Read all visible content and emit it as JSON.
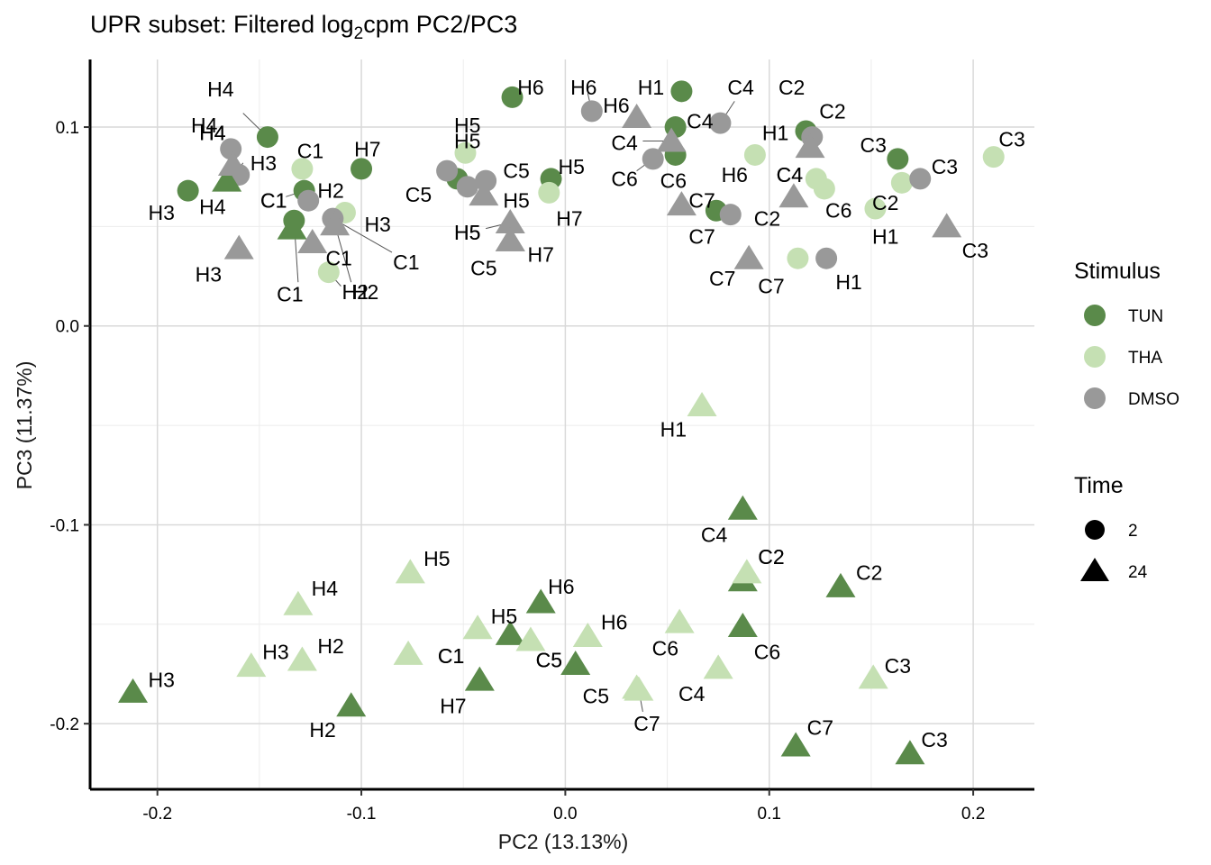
{
  "chart_data": {
    "type": "scatter",
    "title_main": "UPR subset: Filtered log",
    "title_sub": "2",
    "title_rest": "cpm PC2/PC3",
    "xlabel": "PC2 (13.13%)",
    "ylabel": "PC3 (11.37%)",
    "xlim": [
      -0.233,
      0.23
    ],
    "ylim": [
      -0.233,
      0.134
    ],
    "xticks": [
      -0.2,
      -0.1,
      0.0,
      0.1,
      0.2
    ],
    "xtick_labels": [
      "-0.2",
      "-0.1",
      "0.0",
      "0.1",
      "0.2"
    ],
    "yticks": [
      -0.2,
      -0.1,
      0.0,
      0.1
    ],
    "ytick_labels": [
      "-0.2",
      "-0.1",
      "0.0",
      "0.1"
    ],
    "grid": true,
    "colors": {
      "TUN": "#5A8A4A",
      "THA": "#C5E0B3",
      "DMSO": "#999999"
    },
    "legend": {
      "stimulus_title": "Stimulus",
      "stimulus": [
        "TUN",
        "THA",
        "DMSO"
      ],
      "time_title": "Time",
      "time": [
        "2",
        "24"
      ],
      "position": "right"
    },
    "points": [
      {
        "label": "H4",
        "stim": "TUN",
        "time": "2",
        "x": -0.146,
        "y": 0.095,
        "lx": -0.169,
        "ly": 0.119
      },
      {
        "label": "H3",
        "stim": "TUN",
        "time": "2",
        "x": -0.185,
        "y": 0.068,
        "lx": -0.198,
        "ly": 0.057
      },
      {
        "label": "C1",
        "stim": "TUN",
        "time": "2",
        "x": -0.128,
        "y": 0.068,
        "lx": -0.143,
        "ly": 0.063
      },
      {
        "label": "C1",
        "stim": "TUN",
        "time": "2",
        "x": -0.133,
        "y": 0.053,
        "lx": -0.135,
        "ly": 0.016
      },
      {
        "label": "H7",
        "stim": "TUN",
        "time": "2",
        "x": -0.1,
        "y": 0.079,
        "lx": -0.097,
        "ly": 0.089
      },
      {
        "label": "H6",
        "stim": "TUN",
        "time": "2",
        "x": -0.026,
        "y": 0.115,
        "lx": -0.017,
        "ly": 0.12
      },
      {
        "label": "H5",
        "stim": "TUN",
        "time": "2",
        "x": -0.007,
        "y": 0.074,
        "lx": 0.003,
        "ly": 0.08
      },
      {
        "label": "H5",
        "stim": "TUN",
        "time": "2",
        "x": -0.053,
        "y": 0.074,
        "lx": -0.048,
        "ly": 0.093
      },
      {
        "label": "H1",
        "stim": "TUN",
        "time": "2",
        "x": 0.057,
        "y": 0.118,
        "lx": 0.042,
        "ly": 0.12
      },
      {
        "label": "C4",
        "stim": "TUN",
        "time": "2",
        "x": 0.054,
        "y": 0.1,
        "lx": 0.066,
        "ly": 0.103
      },
      {
        "label": "C6",
        "stim": "TUN",
        "time": "2",
        "x": 0.054,
        "y": 0.086,
        "lx": 0.053,
        "ly": 0.073
      },
      {
        "label": "C7",
        "stim": "TUN",
        "time": "2",
        "x": 0.074,
        "y": 0.058,
        "lx": 0.067,
        "ly": 0.045
      },
      {
        "label": "C2",
        "stim": "TUN",
        "time": "2",
        "x": 0.118,
        "y": 0.098,
        "lx": 0.111,
        "ly": 0.12
      },
      {
        "label": "C3",
        "stim": "TUN",
        "time": "2",
        "x": 0.163,
        "y": 0.084,
        "lx": 0.151,
        "ly": 0.091
      },
      {
        "label": "H4",
        "stim": "THA",
        "time": "2",
        "x": -0.163,
        "y": 0.075,
        "lx": -0.177,
        "ly": 0.101
      },
      {
        "label": "C1",
        "stim": "THA",
        "time": "2",
        "x": -0.129,
        "y": 0.079,
        "lx": -0.125,
        "ly": 0.088
      },
      {
        "label": "H3",
        "stim": "THA",
        "time": "2",
        "x": -0.108,
        "y": 0.057,
        "lx": -0.092,
        "ly": 0.051
      },
      {
        "label": "H2",
        "stim": "THA",
        "time": "2",
        "x": -0.116,
        "y": 0.027,
        "lx": -0.103,
        "ly": 0.017
      },
      {
        "label": "H5",
        "stim": "THA",
        "time": "2",
        "x": -0.049,
        "y": 0.087,
        "lx": -0.048,
        "ly": 0.101
      },
      {
        "label": "H7",
        "stim": "THA",
        "time": "2",
        "x": -0.008,
        "y": 0.067,
        "lx": 0.002,
        "ly": 0.054
      },
      {
        "label": "H6",
        "stim": "THA",
        "time": "2",
        "x": 0.093,
        "y": 0.086,
        "lx": 0.083,
        "ly": 0.076
      },
      {
        "label": "C4",
        "stim": "THA",
        "time": "2",
        "x": 0.123,
        "y": 0.074,
        "lx": 0.11,
        "ly": 0.076
      },
      {
        "label": "C6",
        "stim": "THA",
        "time": "2",
        "x": 0.127,
        "y": 0.069,
        "lx": 0.134,
        "ly": 0.058
      },
      {
        "label": "C2",
        "stim": "THA",
        "time": "2",
        "x": 0.165,
        "y": 0.072,
        "lx": 0.157,
        "ly": 0.062
      },
      {
        "label": "H1",
        "stim": "THA",
        "time": "2",
        "x": 0.152,
        "y": 0.059,
        "lx": 0.157,
        "ly": 0.045
      },
      {
        "label": "C7",
        "stim": "THA",
        "time": "2",
        "x": 0.114,
        "y": 0.034,
        "lx": 0.101,
        "ly": 0.02
      },
      {
        "label": "C3",
        "stim": "THA",
        "time": "2",
        "x": 0.21,
        "y": 0.085,
        "lx": 0.219,
        "ly": 0.094
      },
      {
        "label": "H4",
        "stim": "DMSO",
        "time": "2",
        "x": -0.164,
        "y": 0.089,
        "lx": -0.173,
        "ly": 0.097
      },
      {
        "label": "H3",
        "stim": "DMSO",
        "time": "2",
        "x": -0.16,
        "y": 0.076,
        "lx": -0.148,
        "ly": 0.082
      },
      {
        "label": "H2",
        "stim": "DMSO",
        "time": "2",
        "x": -0.126,
        "y": 0.063,
        "lx": -0.115,
        "ly": 0.068
      },
      {
        "label": "C1",
        "stim": "DMSO",
        "time": "2",
        "x": -0.114,
        "y": 0.054,
        "lx": -0.078,
        "ly": 0.032
      },
      {
        "label": "C5",
        "stim": "DMSO",
        "time": "2",
        "x": -0.058,
        "y": 0.078,
        "lx": -0.072,
        "ly": 0.066
      },
      {
        "label": "C5",
        "stim": "DMSO",
        "time": "2",
        "x": -0.039,
        "y": 0.073,
        "lx": -0.024,
        "ly": 0.078
      },
      {
        "label": "H5",
        "stim": "DMSO",
        "time": "2",
        "x": -0.048,
        "y": 0.07,
        "lx": -0.048,
        "ly": 0.047
      },
      {
        "label": "H6",
        "stim": "DMSO",
        "time": "2",
        "x": 0.013,
        "y": 0.108,
        "lx": 0.009,
        "ly": 0.12
      },
      {
        "label": "C6",
        "stim": "DMSO",
        "time": "2",
        "x": 0.043,
        "y": 0.084,
        "lx": 0.029,
        "ly": 0.074
      },
      {
        "label": "C4",
        "stim": "DMSO",
        "time": "2",
        "x": 0.076,
        "y": 0.102,
        "lx": 0.086,
        "ly": 0.12
      },
      {
        "label": "C2",
        "stim": "DMSO",
        "time": "2",
        "x": 0.081,
        "y": 0.056,
        "lx": 0.099,
        "ly": 0.054
      },
      {
        "label": "C2",
        "stim": "DMSO",
        "time": "2",
        "x": 0.121,
        "y": 0.095,
        "lx": 0.131,
        "ly": 0.108
      },
      {
        "label": "H1",
        "stim": "DMSO",
        "time": "2",
        "x": 0.128,
        "y": 0.034,
        "lx": 0.139,
        "ly": 0.022
      },
      {
        "label": "C3",
        "stim": "DMSO",
        "time": "2",
        "x": 0.174,
        "y": 0.074,
        "lx": 0.186,
        "ly": 0.08
      },
      {
        "label": "H4",
        "stim": "TUN",
        "time": "24",
        "x": -0.166,
        "y": 0.073,
        "lx": -0.173,
        "ly": 0.06
      },
      {
        "label": "C1",
        "stim": "TUN",
        "time": "24",
        "x": -0.134,
        "y": 0.049,
        "lx": -0.143,
        "ly": 0.063
      },
      {
        "label": "H3",
        "stim": "TUN",
        "time": "24",
        "x": -0.212,
        "y": -0.184,
        "lx": -0.198,
        "ly": -0.178
      },
      {
        "label": "H2",
        "stim": "TUN",
        "time": "24",
        "x": -0.105,
        "y": -0.191,
        "lx": -0.119,
        "ly": -0.203
      },
      {
        "label": "H7",
        "stim": "TUN",
        "time": "24",
        "x": -0.042,
        "y": -0.178,
        "lx": -0.055,
        "ly": -0.191
      },
      {
        "label": "H5",
        "stim": "TUN",
        "time": "24",
        "x": -0.027,
        "y": -0.155,
        "lx": -0.03,
        "ly": -0.146
      },
      {
        "label": "H6",
        "stim": "TUN",
        "time": "24",
        "x": -0.012,
        "y": -0.139,
        "lx": -0.002,
        "ly": -0.131
      },
      {
        "label": "C5",
        "stim": "TUN",
        "time": "24",
        "x": 0.005,
        "y": -0.17,
        "lx": -0.008,
        "ly": -0.168
      },
      {
        "label": "C4",
        "stim": "TUN",
        "time": "24",
        "x": 0.087,
        "y": -0.092,
        "lx": 0.073,
        "ly": -0.105
      },
      {
        "label": "C2",
        "stim": "TUN",
        "time": "24",
        "x": 0.087,
        "y": -0.128,
        "lx": 0.101,
        "ly": -0.116
      },
      {
        "label": "C6",
        "stim": "TUN",
        "time": "24",
        "x": 0.087,
        "y": -0.151,
        "lx": 0.099,
        "ly": -0.164
      },
      {
        "label": "C2",
        "stim": "TUN",
        "time": "24",
        "x": 0.135,
        "y": -0.131,
        "lx": 0.149,
        "ly": -0.124
      },
      {
        "label": "C7",
        "stim": "TUN",
        "time": "24",
        "x": 0.113,
        "y": -0.211,
        "lx": 0.125,
        "ly": -0.202
      },
      {
        "label": "C3",
        "stim": "TUN",
        "time": "24",
        "x": 0.169,
        "y": -0.215,
        "lx": 0.181,
        "ly": -0.208
      },
      {
        "label": "H4",
        "stim": "THA",
        "time": "24",
        "x": -0.131,
        "y": -0.14,
        "lx": -0.118,
        "ly": -0.132
      },
      {
        "label": "H3",
        "stim": "THA",
        "time": "24",
        "x": -0.154,
        "y": -0.171,
        "lx": -0.142,
        "ly": -0.164
      },
      {
        "label": "H2",
        "stim": "THA",
        "time": "24",
        "x": -0.129,
        "y": -0.168,
        "lx": -0.115,
        "ly": -0.161
      },
      {
        "label": "H5",
        "stim": "THA",
        "time": "24",
        "x": -0.076,
        "y": -0.124,
        "lx": -0.063,
        "ly": -0.117
      },
      {
        "label": "C1",
        "stim": "THA",
        "time": "24",
        "x": -0.077,
        "y": -0.165,
        "lx": -0.056,
        "ly": -0.166
      },
      {
        "label": "C1",
        "stim": "THA",
        "time": "24",
        "x": -0.043,
        "y": -0.152,
        "lx": -0.056,
        "ly": -0.166
      },
      {
        "label": "C5",
        "stim": "THA",
        "time": "24",
        "x": -0.017,
        "y": -0.158,
        "lx": -0.008,
        "ly": -0.168
      },
      {
        "label": "H6",
        "stim": "THA",
        "time": "24",
        "x": 0.011,
        "y": -0.156,
        "lx": 0.024,
        "ly": -0.149
      },
      {
        "label": "C5",
        "stim": "THA",
        "time": "24",
        "x": 0.035,
        "y": -0.182,
        "lx": 0.015,
        "ly": -0.186
      },
      {
        "label": "C6",
        "stim": "THA",
        "time": "24",
        "x": 0.056,
        "y": -0.149,
        "lx": 0.049,
        "ly": -0.162
      },
      {
        "label": "H1",
        "stim": "THA",
        "time": "24",
        "x": 0.067,
        "y": -0.04,
        "lx": 0.053,
        "ly": -0.052
      },
      {
        "label": "C2",
        "stim": "THA",
        "time": "24",
        "x": 0.089,
        "y": -0.124,
        "lx": 0.101,
        "ly": -0.116
      },
      {
        "label": "C4",
        "stim": "THA",
        "time": "24",
        "x": 0.075,
        "y": -0.172,
        "lx": 0.062,
        "ly": -0.185
      },
      {
        "label": "C7",
        "stim": "THA",
        "time": "24",
        "x": 0.036,
        "y": -0.183,
        "lx": 0.04,
        "ly": -0.2
      },
      {
        "label": "C3",
        "stim": "THA",
        "time": "24",
        "x": 0.151,
        "y": -0.177,
        "lx": 0.163,
        "ly": -0.171
      },
      {
        "label": "H4",
        "stim": "DMSO",
        "time": "24",
        "x": -0.163,
        "y": 0.081,
        "lx": -0.173,
        "ly": 0.097
      },
      {
        "label": "H3",
        "stim": "DMSO",
        "time": "24",
        "x": -0.16,
        "y": 0.039,
        "lx": -0.175,
        "ly": 0.026
      },
      {
        "label": "H2",
        "stim": "DMSO",
        "time": "24",
        "x": -0.113,
        "y": 0.051,
        "lx": -0.098,
        "ly": 0.017
      },
      {
        "label": "C1",
        "stim": "DMSO",
        "time": "24",
        "x": -0.124,
        "y": 0.042,
        "lx": -0.111,
        "ly": 0.034
      },
      {
        "label": "H5",
        "stim": "DMSO",
        "time": "24",
        "x": -0.04,
        "y": 0.066,
        "lx": -0.024,
        "ly": 0.063
      },
      {
        "label": "H5",
        "stim": "DMSO",
        "time": "24",
        "x": -0.027,
        "y": 0.052,
        "lx": -0.048,
        "ly": 0.047
      },
      {
        "label": "H7",
        "stim": "DMSO",
        "time": "24",
        "x": -0.027,
        "y": 0.043,
        "lx": -0.012,
        "ly": 0.036
      },
      {
        "label": "C5",
        "stim": "DMSO",
        "time": "24",
        "x": -0.027,
        "y": 0.043,
        "lx": -0.04,
        "ly": 0.029
      },
      {
        "label": "H6",
        "stim": "DMSO",
        "time": "24",
        "x": 0.035,
        "y": 0.105,
        "lx": 0.025,
        "ly": 0.111
      },
      {
        "label": "C4",
        "stim": "DMSO",
        "time": "24",
        "x": 0.052,
        "y": 0.093,
        "lx": 0.029,
        "ly": 0.092
      },
      {
        "label": "C7",
        "stim": "DMSO",
        "time": "24",
        "x": 0.057,
        "y": 0.061,
        "lx": 0.067,
        "ly": 0.063
      },
      {
        "label": "C7",
        "stim": "DMSO",
        "time": "24",
        "x": 0.09,
        "y": 0.034,
        "lx": 0.077,
        "ly": 0.024
      },
      {
        "label": "C4",
        "stim": "DMSO",
        "time": "24",
        "x": 0.112,
        "y": 0.065,
        "lx": 0.11,
        "ly": 0.076
      },
      {
        "label": "H1",
        "stim": "DMSO",
        "time": "24",
        "x": 0.12,
        "y": 0.09,
        "lx": 0.103,
        "ly": 0.097
      },
      {
        "label": "C3",
        "stim": "DMSO",
        "time": "24",
        "x": 0.187,
        "y": 0.05,
        "lx": 0.201,
        "ly": 0.038
      }
    ],
    "connectors": [
      {
        "x": -0.146,
        "y": 0.095,
        "tx": -0.158,
        "ty": 0.107
      },
      {
        "x": -0.133,
        "y": 0.053,
        "tx": -0.131,
        "ty": 0.022
      },
      {
        "x": -0.114,
        "y": 0.054,
        "tx": -0.085,
        "ty": 0.037
      },
      {
        "x": -0.116,
        "y": 0.027,
        "tx": -0.11,
        "ty": 0.02
      },
      {
        "x": -0.113,
        "y": 0.051,
        "tx": -0.105,
        "ty": 0.022
      },
      {
        "x": 0.043,
        "y": 0.084,
        "tx": 0.035,
        "ty": 0.078
      },
      {
        "x": 0.052,
        "y": 0.093,
        "tx": 0.038,
        "ty": 0.093
      },
      {
        "x": 0.076,
        "y": 0.102,
        "tx": 0.083,
        "ty": 0.113
      },
      {
        "x": 0.013,
        "y": 0.108,
        "tx": 0.011,
        "ty": 0.117
      },
      {
        "x": -0.128,
        "y": 0.068,
        "tx": -0.137,
        "ty": 0.065
      },
      {
        "x": -0.163,
        "y": 0.075,
        "tx": -0.158,
        "ty": 0.082
      },
      {
        "x": 0.036,
        "y": -0.183,
        "tx": 0.038,
        "ty": -0.194
      },
      {
        "x": -0.027,
        "y": 0.052,
        "tx": -0.039,
        "ty": 0.049
      }
    ]
  }
}
